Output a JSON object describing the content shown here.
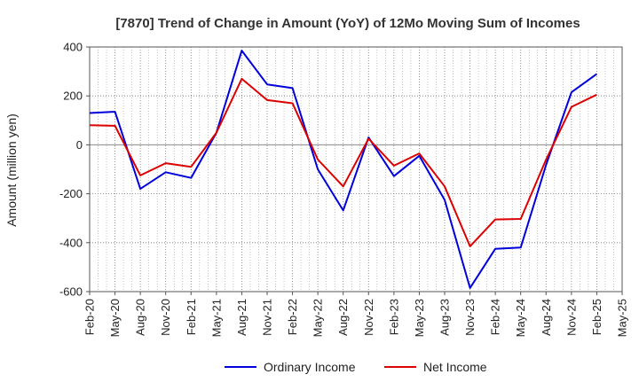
{
  "chart_data": {
    "type": "line",
    "title": "[7870]  Trend of Change in Amount (YoY) of 12Mo Moving Sum of Incomes",
    "ylabel": "Amount (million yen)",
    "xlabel": "",
    "ylim": [
      -600,
      400
    ],
    "yticks": [
      400,
      200,
      0,
      -200,
      -400,
      -600
    ],
    "grid": true,
    "legend_position": "bottom",
    "x_tick_labels": [
      "Feb-20",
      "May-20",
      "Aug-20",
      "Nov-20",
      "Feb-21",
      "May-21",
      "Aug-21",
      "Nov-21",
      "Feb-22",
      "May-22",
      "Aug-22",
      "Nov-22",
      "Feb-23",
      "May-23",
      "Aug-23",
      "Nov-23",
      "Feb-24",
      "May-24",
      "Aug-24",
      "Nov-24",
      "Feb-25",
      "May-25"
    ],
    "series": [
      {
        "name": "Ordinary Income",
        "color": "#0000dd",
        "values": [
          130,
          135,
          -180,
          -112,
          -135,
          50,
          385,
          247,
          232,
          -100,
          -268,
          30,
          -128,
          -45,
          -225,
          -585,
          -425,
          -420,
          -82,
          215,
          290,
          null
        ]
      },
      {
        "name": "Net Income",
        "color": "#dd0000",
        "values": [
          80,
          78,
          -125,
          -75,
          -90,
          50,
          270,
          183,
          170,
          -60,
          -170,
          25,
          -85,
          -35,
          -170,
          -415,
          -305,
          -303,
          -60,
          155,
          205,
          null
        ]
      }
    ]
  }
}
